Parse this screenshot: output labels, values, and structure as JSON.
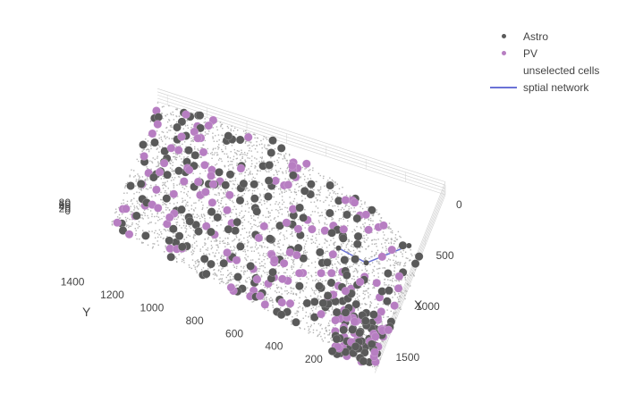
{
  "chart_data": {
    "type": "scatter",
    "dimensions": "3d",
    "title": "",
    "axes": {
      "x": {
        "label": "X",
        "range": [
          0,
          1750
        ],
        "ticks": [
          0,
          500,
          1000,
          1500
        ]
      },
      "y": {
        "label": "Y",
        "range": [
          0,
          1450
        ],
        "ticks": [
          200,
          400,
          600,
          800,
          1000,
          1200,
          1400
        ]
      },
      "z": {
        "label": "",
        "range": [
          0,
          80
        ],
        "tick_labels": [
          "80",
          "60",
          "40",
          "20",
          "0"
        ]
      }
    },
    "grid": true,
    "legend_position": "top-right",
    "series": [
      {
        "name": "Astro",
        "mode": "markers",
        "color": "#5a5a5a",
        "approx_count": 230
      },
      {
        "name": "PV",
        "mode": "markers",
        "color": "#b77ec2",
        "approx_count": 170
      },
      {
        "name": "unselected cells",
        "mode": "markers",
        "color": "#b4b4b4",
        "approx_count": 3500
      },
      {
        "name": "sptial network",
        "mode": "lines",
        "color": "#6b72d6",
        "points": [
          [
            560,
            70,
            10
          ],
          [
            830,
            230,
            10
          ],
          [
            780,
            380,
            10
          ]
        ]
      }
    ]
  }
}
